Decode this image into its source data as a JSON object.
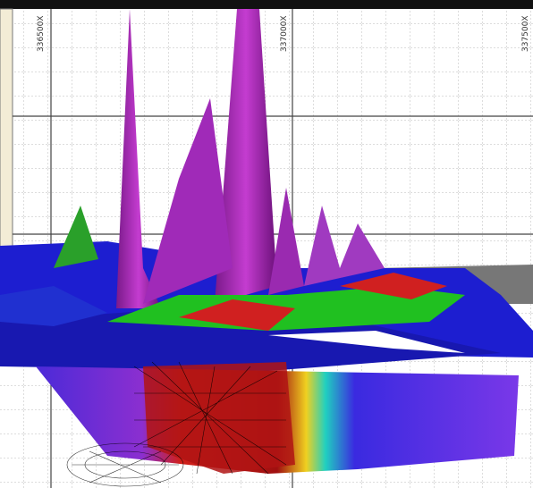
{
  "axis_labels": [
    "336500X",
    "337000X",
    "337500X"
  ]
}
